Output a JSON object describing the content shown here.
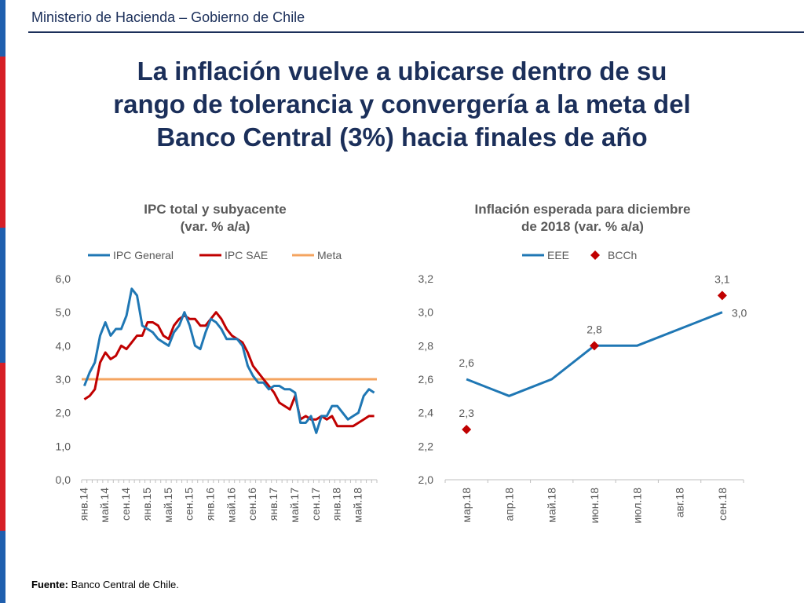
{
  "header": {
    "title": "Ministerio de Hacienda – Gobierno de Chile"
  },
  "slide": {
    "title_lines": [
      "La inflación vuelve a ubicarse dentro de su",
      "rango de tolerancia y convergería a la meta del",
      "Banco Central (3%) hacia finales de año"
    ]
  },
  "footer": {
    "source_label": "Fuente:",
    "source_text": " Banco Central de Chile."
  },
  "colors": {
    "navy": "#1b2f5a",
    "ipc_general": "#1f77b4",
    "ipc_sae": "#c00000",
    "meta": "#f4a460",
    "bcch": "#c00000"
  },
  "chart_data": [
    {
      "type": "line",
      "title": "IPC total y subyacente",
      "subtitle": "(var. % a/a)",
      "ylim": [
        0,
        6
      ],
      "yticks": [
        "0,0",
        "1,0",
        "2,0",
        "3,0",
        "4,0",
        "5,0",
        "6,0"
      ],
      "xticks": [
        "янв.14",
        "май.14",
        "сен.14",
        "янв.15",
        "май.15",
        "сен.15",
        "янв.16",
        "май.16",
        "сен.16",
        "янв.17",
        "май.17",
        "сен.17",
        "янв.18",
        "май.18"
      ],
      "legend": [
        "IPC General",
        "IPC SAE",
        "Meta"
      ],
      "series": [
        {
          "name": "IPC General",
          "values": [
            2.8,
            3.2,
            3.5,
            4.3,
            4.7,
            4.3,
            4.5,
            4.5,
            4.9,
            5.7,
            5.5,
            4.6,
            4.5,
            4.4,
            4.2,
            4.1,
            4.0,
            4.4,
            4.6,
            5.0,
            4.6,
            4.0,
            3.9,
            4.4,
            4.8,
            4.7,
            4.5,
            4.2,
            4.2,
            4.2,
            4.0,
            3.4,
            3.1,
            2.9,
            2.9,
            2.7,
            2.8,
            2.8,
            2.7,
            2.7,
            2.6,
            1.7,
            1.7,
            1.9,
            1.4,
            1.9,
            1.9,
            2.2,
            2.2,
            2.0,
            1.8,
            1.9,
            2.0,
            2.5,
            2.7,
            2.6
          ]
        },
        {
          "name": "IPC SAE",
          "values": [
            2.4,
            2.5,
            2.7,
            3.5,
            3.8,
            3.6,
            3.7,
            4.0,
            3.9,
            4.1,
            4.3,
            4.3,
            4.7,
            4.7,
            4.6,
            4.3,
            4.2,
            4.6,
            4.8,
            4.9,
            4.8,
            4.8,
            4.6,
            4.6,
            4.8,
            5.0,
            4.8,
            4.5,
            4.3,
            4.2,
            4.1,
            3.8,
            3.4,
            3.2,
            3.0,
            2.8,
            2.6,
            2.3,
            2.2,
            2.1,
            2.5,
            1.8,
            1.9,
            1.8,
            1.8,
            1.9,
            1.8,
            1.9,
            1.6,
            1.6,
            1.6,
            1.6,
            1.7,
            1.8,
            1.9,
            1.9
          ]
        },
        {
          "name": "Meta",
          "values": [
            3.0,
            3.0
          ]
        }
      ]
    },
    {
      "type": "line",
      "title": "Inflación esperada para diciembre",
      "subtitle": "de 2018 (var. % a/a)",
      "ylim": [
        2.0,
        3.2
      ],
      "yticks": [
        "2,0",
        "2,2",
        "2,4",
        "2,6",
        "2,8",
        "3,0",
        "3,2"
      ],
      "categories": [
        "мар.18",
        "апр.18",
        "май.18",
        "июн.18",
        "июл.18",
        "авг.18",
        "сен.18"
      ],
      "legend": [
        "EEE",
        "BCCh"
      ],
      "series": [
        {
          "name": "EEE",
          "values": [
            2.6,
            2.5,
            2.6,
            2.8,
            2.8,
            2.9,
            3.0
          ]
        },
        {
          "name": "BCCh",
          "type": "scatter",
          "x": [
            "мар.18",
            "июн.18",
            "сен.18"
          ],
          "values": [
            2.3,
            2.8,
            3.1
          ]
        }
      ],
      "data_labels": [
        {
          "text": "2,6",
          "category": "мар.18",
          "value": 2.6
        },
        {
          "text": "2,3",
          "category": "мар.18",
          "value": 2.3
        },
        {
          "text": "2,8",
          "category": "июн.18",
          "value": 2.8
        },
        {
          "text": "3,1",
          "category": "сен.18",
          "value": 3.1
        },
        {
          "text": "3,0",
          "category": "сен.18",
          "value": 3.0
        }
      ]
    }
  ]
}
